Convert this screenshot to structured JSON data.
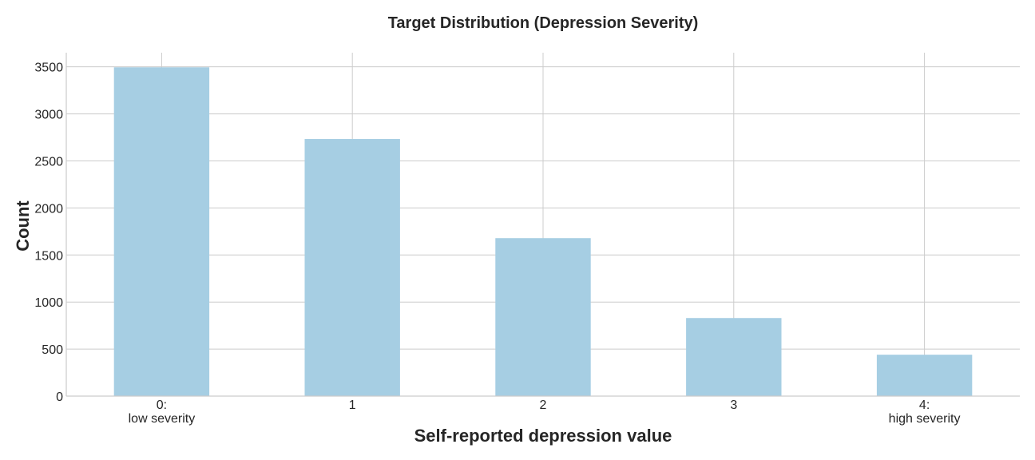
{
  "chart_data": {
    "type": "bar",
    "title": "Target Distribution (Depression Severity)",
    "xlabel": "Self-reported depression value",
    "ylabel": "Count",
    "categories": [
      [
        "0:",
        "low severity"
      ],
      [
        "1"
      ],
      [
        "2"
      ],
      [
        "3"
      ],
      [
        "4:",
        "high severity"
      ]
    ],
    "values": [
      3495,
      2733,
      1679,
      830,
      440
    ],
    "ylim": [
      0,
      3650
    ],
    "yticks": [
      0,
      500,
      1000,
      1500,
      2000,
      2500,
      3000,
      3500
    ],
    "grid": true,
    "bar_color": "#a6cee3"
  }
}
